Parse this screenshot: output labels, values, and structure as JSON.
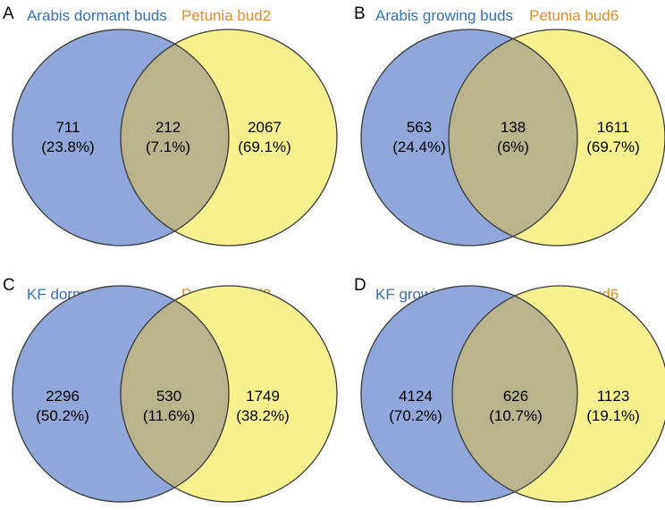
{
  "colors": {
    "left_fill": "#8fa7d9",
    "right_fill": "#f7f28f",
    "overlap_fill": "#b9b48b",
    "stroke": "#3a3a3a",
    "left_label_color": "#3a6fb0",
    "right_label_color": "#e0902a"
  },
  "panels": [
    {
      "letter": "A",
      "left_label": "Arabis dormant buds",
      "right_label": "Petunia bud2",
      "left_count": "711",
      "left_pct": "(23.8%)",
      "overlap_count": "212",
      "overlap_pct": "(7.1%)",
      "right_count": "2067",
      "right_pct": "(69.1%)"
    },
    {
      "letter": "B",
      "left_label": "Arabis growing buds",
      "right_label": "Petunia bud6",
      "left_count": "563",
      "left_pct": "(24.4%)",
      "overlap_count": "138",
      "overlap_pct": "(6%)",
      "right_count": "1611",
      "right_pct": "(69.7%)"
    },
    {
      "letter": "C",
      "left_label": "KF dormant buds",
      "right_label": "Petunia bud2",
      "left_count": "2296",
      "left_pct": "(50.2%)",
      "overlap_count": "530",
      "overlap_pct": "(11.6%)",
      "right_count": "1749",
      "right_pct": "(38.2%)"
    },
    {
      "letter": "D",
      "left_label": "KF growing buds",
      "right_label": "Petunia bud6",
      "left_count": "4124",
      "left_pct": "(70.2%)",
      "overlap_count": "626",
      "overlap_pct": "(10.7%)",
      "right_count": "1123",
      "right_pct": "(19.1%)"
    }
  ]
}
